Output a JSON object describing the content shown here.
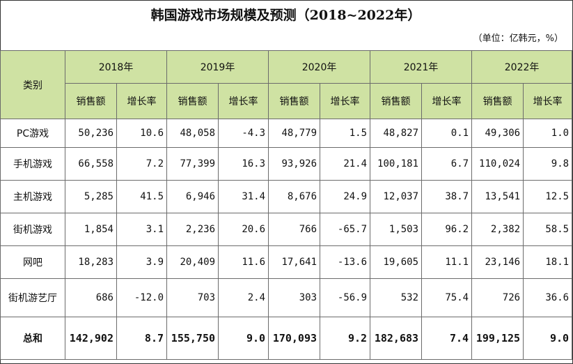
{
  "title": "韩国游戏市场规模及预测（2018~2022年）",
  "unit": "（单位：亿韩元，%）",
  "header": {
    "category": "类别",
    "years": [
      "2018年",
      "2019年",
      "2020年",
      "2021年",
      "2022年"
    ],
    "sales": "销售额",
    "growth": "增长率"
  },
  "rows": [
    {
      "label": "PC游戏",
      "cells": [
        "50,236",
        "10.6",
        "48,058",
        "-4.3",
        "48,779",
        "1.5",
        "48,827",
        "0.1",
        "49,306",
        "1.0"
      ]
    },
    {
      "label": "手机游戏",
      "cells": [
        "66,558",
        "7.2",
        "77,399",
        "16.3",
        "93,926",
        "21.4",
        "100,181",
        "6.7",
        "110,024",
        "9.8"
      ]
    },
    {
      "label": "主机游戏",
      "cells": [
        "5,285",
        "41.5",
        "6,946",
        "31.4",
        "8,676",
        "24.9",
        "12,037",
        "38.7",
        "13,541",
        "12.5"
      ]
    },
    {
      "label": "街机游戏",
      "cells": [
        "1,854",
        "3.1",
        "2,236",
        "20.6",
        "766",
        "-65.7",
        "1,503",
        "96.2",
        "2,382",
        "58.5"
      ]
    },
    {
      "label": "网吧",
      "cells": [
        "18,283",
        "3.9",
        "20,409",
        "11.6",
        "17,641",
        "-13.6",
        "19,605",
        "11.1",
        "23,146",
        "18.1"
      ]
    },
    {
      "label": "街机游艺厅",
      "cells": [
        "686",
        "-12.0",
        "703",
        "2.4",
        "303",
        "-56.9",
        "532",
        "75.4",
        "726",
        "36.6"
      ]
    }
  ],
  "total": {
    "label": "总和",
    "cells": [
      "142,902",
      "8.7",
      "155,750",
      "9.0",
      "170,093",
      "9.2",
      "182,683",
      "7.4",
      "199,125",
      "9.0"
    ]
  }
}
